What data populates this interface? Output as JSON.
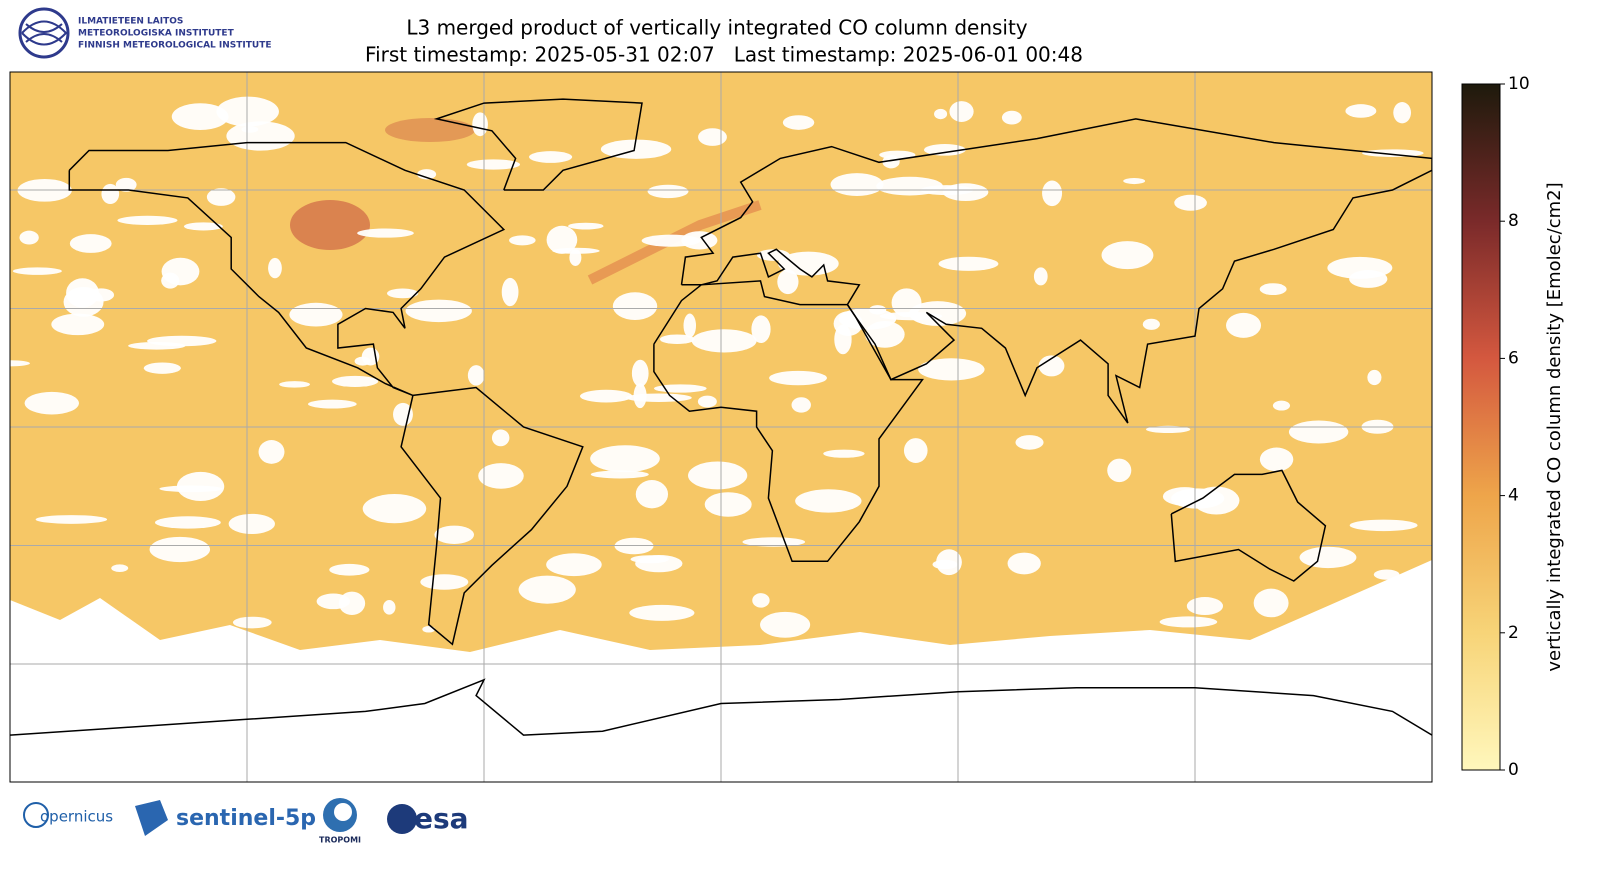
{
  "header": {
    "institute": [
      "ILMATIETEEN LAITOS",
      "METEOROLOGISKA INSTITUTET",
      "FINNISH METEOROLOGICAL INSTITUTE"
    ]
  },
  "chart_data": {
    "type": "map",
    "title": [
      "L3 merged product of vertically integrated CO column density",
      "First timestamp: 2025-05-31 02:07   Last timestamp: 2025-06-01 00:48"
    ],
    "colorbar": {
      "label": "vertically integrated CO column density [Emolec/cm2]",
      "lim": [
        0,
        10
      ],
      "ticks": [
        0,
        2,
        4,
        6,
        8,
        10
      ],
      "colors": [
        "#fff7bc",
        "#f7d478",
        "#eea54a",
        "#d4583f",
        "#7a2a2a",
        "#1e1a0c"
      ]
    }
  },
  "footer": {
    "logos": [
      "opernicus",
      "sentinel-5p",
      "TROPOMI",
      "esa"
    ]
  }
}
